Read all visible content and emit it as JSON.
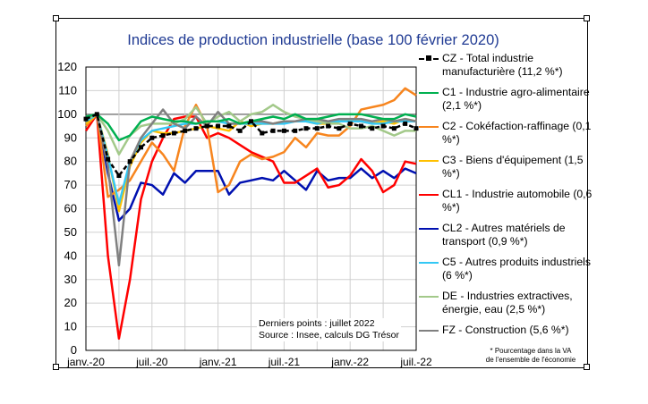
{
  "chart_data": {
    "type": "line",
    "title": "Indices de production industrielle (base 100 février 2020)",
    "x": [
      "2020-01",
      "2020-02",
      "2020-03",
      "2020-04",
      "2020-05",
      "2020-06",
      "2020-07",
      "2020-08",
      "2020-09",
      "2020-10",
      "2020-11",
      "2020-12",
      "2021-01",
      "2021-02",
      "2021-03",
      "2021-04",
      "2021-05",
      "2021-06",
      "2021-07",
      "2021-08",
      "2021-09",
      "2021-10",
      "2021-11",
      "2021-12",
      "2022-01",
      "2022-02",
      "2022-03",
      "2022-04",
      "2022-05",
      "2022-06",
      "2022-07"
    ],
    "x_tick_labels": [
      "janv.-20",
      "juil.-20",
      "janv.-21",
      "juil.-21",
      "janv.-22",
      "juil.-22"
    ],
    "y_ticks": [
      0,
      10,
      20,
      30,
      40,
      50,
      60,
      70,
      80,
      90,
      100,
      110,
      120
    ],
    "ylim": [
      0,
      120
    ],
    "grid": true,
    "legend_position": "right",
    "series": [
      {
        "name": "CZ - Total industrie manufacturière (11,2 %*)",
        "color": "#000000",
        "style": "dashed-markers",
        "values": [
          98,
          100,
          81,
          74,
          80,
          86,
          90,
          91,
          92,
          93,
          94,
          95,
          95,
          95,
          93,
          97,
          92,
          93,
          93,
          93,
          94,
          94,
          95,
          94,
          96,
          95,
          94,
          95,
          94,
          96,
          94
        ]
      },
      {
        "name": "C1 - Industrie agro-alimentaire (2,1 %*)",
        "color": "#00b050",
        "values": [
          99,
          100,
          96,
          89,
          91,
          97,
          99,
          98,
          97,
          97,
          96,
          97,
          97,
          98,
          96,
          97,
          98,
          99,
          98,
          100,
          98,
          98,
          99,
          100,
          100,
          100,
          99,
          98,
          98,
          100,
          99
        ]
      },
      {
        "name": "C2 - Cokéfaction-raffinage (0,1 %*)",
        "color": "#f7851e",
        "values": [
          95,
          100,
          65,
          68,
          72,
          80,
          88,
          83,
          76,
          95,
          104,
          95,
          67,
          70,
          80,
          83,
          81,
          82,
          84,
          90,
          86,
          92,
          91,
          91,
          95,
          102,
          103,
          104,
          106,
          111,
          108
        ]
      },
      {
        "name": "C3 - Biens d'équipement (1,5 %*)",
        "color": "#ffc000",
        "values": [
          96,
          100,
          83,
          59,
          78,
          88,
          93,
          92,
          92,
          93,
          94,
          95,
          94,
          93,
          97,
          95,
          96,
          96,
          97,
          97,
          97,
          96,
          96,
          97,
          98,
          97,
          96,
          97,
          96,
          98,
          97
        ]
      },
      {
        "name": "CL1 - Industrie automobile (0,6 %*)",
        "color": "#ff0000",
        "values": [
          93,
          100,
          40,
          5,
          30,
          64,
          80,
          90,
          98,
          99,
          99,
          90,
          92,
          90,
          87,
          84,
          82,
          80,
          71,
          71,
          74,
          77,
          69,
          70,
          74,
          81,
          76,
          67,
          70,
          80,
          79
        ]
      },
      {
        "name": "CL2 - Autres matériels de transport (0,9 %*)",
        "color": "#0010b0",
        "values": [
          96,
          100,
          75,
          55,
          60,
          71,
          70,
          66,
          75,
          71,
          76,
          76,
          76,
          66,
          71,
          72,
          73,
          72,
          76,
          72,
          68,
          76,
          72,
          73,
          73,
          77,
          73,
          76,
          73,
          77,
          75
        ]
      },
      {
        "name": "C5 - Autres produits industriels (6 %*)",
        "color": "#33c8f5",
        "values": [
          97,
          100,
          82,
          62,
          80,
          89,
          93,
          94,
          95,
          96,
          96,
          97,
          97,
          96,
          96,
          96,
          96,
          96,
          96,
          97,
          97,
          96,
          97,
          97,
          97,
          97,
          96,
          96,
          97,
          97,
          97
        ]
      },
      {
        "name": "DE - Industries extractives, énergie, eau (2,5 %*)",
        "color": "#a3c98a",
        "values": [
          98,
          100,
          93,
          83,
          91,
          95,
          96,
          96,
          96,
          98,
          103,
          96,
          99,
          101,
          97,
          100,
          101,
          104,
          101,
          99,
          98,
          97,
          96,
          96,
          94,
          94,
          95,
          93,
          91,
          93,
          93
        ]
      },
      {
        "name": "FZ - Construction (5,6 %*)",
        "color": "#808080",
        "values": [
          99,
          100,
          78,
          36,
          80,
          90,
          96,
          102,
          96,
          94,
          99,
          95,
          101,
          96,
          96,
          97,
          97,
          96,
          97,
          97,
          98,
          98,
          97,
          98,
          98,
          98,
          97,
          98,
          97,
          98,
          97
        ]
      }
    ],
    "annotation": [
      "Derniers points : juillet 2022",
      "Source : Insee, calculs DG Trésor"
    ],
    "footnote": [
      "* Pourcentage dans la VA",
      "de l'ensemble de l'économie"
    ]
  }
}
